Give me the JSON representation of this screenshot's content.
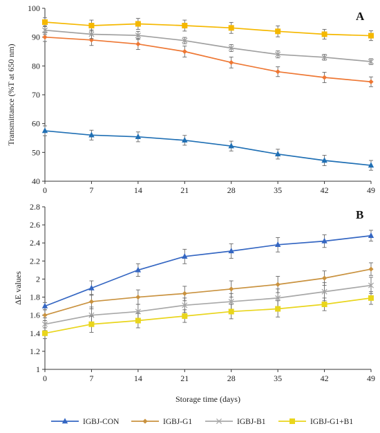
{
  "chart_data": [
    {
      "type": "line",
      "panel_label": "A",
      "ylabel": "Transmittance (%T at 650 nm)",
      "ylim": [
        40,
        100
      ],
      "yticks": [
        40,
        50,
        60,
        70,
        80,
        90,
        100
      ],
      "x": [
        0,
        7,
        14,
        21,
        28,
        35,
        42,
        49
      ],
      "grid": false,
      "series": [
        {
          "name": "IGBJ-CON",
          "color": "#1f6fb4",
          "marker": "triangle",
          "values": [
            57.5,
            56.0,
            55.4,
            54.2,
            52.2,
            49.4,
            47.2,
            45.5
          ],
          "errors": [
            1.7,
            1.7,
            1.7,
            1.7,
            1.7,
            1.7,
            1.8,
            1.7
          ]
        },
        {
          "name": "IGBJ-G1",
          "color": "#ee7733",
          "marker": "diamond",
          "values": [
            90.0,
            89.0,
            87.6,
            85.0,
            81.2,
            78.0,
            76.0,
            74.5
          ],
          "errors": [
            1.5,
            1.9,
            1.9,
            1.9,
            1.9,
            1.7,
            1.8,
            1.7
          ]
        },
        {
          "name": "IGBJ-B1",
          "color": "#a0a0a0",
          "marker": "x",
          "values": [
            92.4,
            91.0,
            90.6,
            88.8,
            86.2,
            84.0,
            83.0,
            81.5
          ],
          "errors": [
            1.5,
            1.5,
            1.4,
            1.1,
            1.2,
            1.2,
            1.0,
            1.0
          ]
        },
        {
          "name": "IGBJ-G1+B1",
          "color": "#f5b800",
          "marker": "square",
          "values": [
            95.2,
            94.0,
            94.6,
            94.0,
            93.2,
            92.0,
            91.0,
            90.5
          ],
          "errors": [
            1.5,
            1.9,
            1.9,
            1.9,
            1.9,
            1.9,
            1.7,
            1.7
          ]
        }
      ]
    },
    {
      "type": "line",
      "panel_label": "B",
      "ylabel": "ΔE values",
      "xlabel": "Storage time (days)",
      "ylim": [
        1,
        2.8
      ],
      "yticks": [
        1,
        1.2,
        1.4,
        1.6,
        1.8,
        2,
        2.2,
        2.4,
        2.6,
        2.8
      ],
      "x": [
        0,
        7,
        14,
        21,
        28,
        35,
        42,
        49
      ],
      "grid": false,
      "series": [
        {
          "name": "IGBJ-CON",
          "color": "#3466c2",
          "marker": "triangle",
          "values": [
            1.7,
            1.9,
            2.1,
            2.25,
            2.31,
            2.38,
            2.42,
            2.48
          ],
          "errors": [
            0.04,
            0.08,
            0.07,
            0.08,
            0.08,
            0.08,
            0.07,
            0.06
          ]
        },
        {
          "name": "IGBJ-G1",
          "color": "#c9923f",
          "marker": "diamond",
          "values": [
            1.6,
            1.75,
            1.8,
            1.84,
            1.89,
            1.94,
            2.01,
            2.11
          ],
          "errors": [
            0.06,
            0.08,
            0.08,
            0.08,
            0.09,
            0.09,
            0.08,
            0.07
          ]
        },
        {
          "name": "IGBJ-B1",
          "color": "#a8a8a8",
          "marker": "x",
          "values": [
            1.5,
            1.6,
            1.64,
            1.71,
            1.75,
            1.79,
            1.86,
            1.93
          ],
          "errors": [
            0.07,
            0.09,
            0.08,
            0.08,
            0.09,
            0.1,
            0.1,
            0.09
          ]
        },
        {
          "name": "IGBJ-G1+B1",
          "color": "#e9d51c",
          "marker": "square",
          "values": [
            1.4,
            1.5,
            1.54,
            1.59,
            1.64,
            1.67,
            1.72,
            1.79
          ],
          "errors": [
            0.06,
            0.09,
            0.08,
            0.07,
            0.08,
            0.09,
            0.07,
            0.07
          ]
        }
      ]
    }
  ],
  "legend": {
    "placement": "bottom",
    "items": [
      {
        "label": "IGBJ-CON",
        "color": "#3466c2",
        "marker": "triangle"
      },
      {
        "label": "IGBJ-G1",
        "color": "#c9923f",
        "marker": "diamond"
      },
      {
        "label": "IGBJ-B1",
        "color": "#a8a8a8",
        "marker": "x"
      },
      {
        "label": "IGBJ-G1+B1",
        "color": "#e9d51c",
        "marker": "square"
      }
    ]
  }
}
